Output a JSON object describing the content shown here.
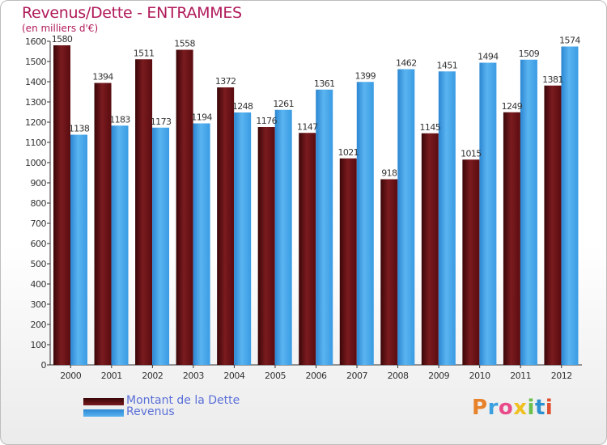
{
  "chart_data": {
    "type": "bar",
    "title": "Revenus/Dette - ENTRAMMES",
    "subtitle": "(en milliers d'€)",
    "categories": [
      "2000",
      "2001",
      "2002",
      "2003",
      "2004",
      "2005",
      "2006",
      "2007",
      "2008",
      "2009",
      "2010",
      "2011",
      "2012"
    ],
    "series": [
      {
        "name": "Montant de la Dette",
        "color": "#6e0f13",
        "values": [
          1580,
          1394,
          1511,
          1558,
          1372,
          1176,
          1147,
          1021,
          918,
          1145,
          1015,
          1249,
          1381
        ]
      },
      {
        "name": "Revenus",
        "color": "#3f9ee6",
        "values": [
          1138,
          1183,
          1173,
          1194,
          1248,
          1261,
          1361,
          1399,
          1462,
          1451,
          1494,
          1509,
          1574
        ]
      }
    ],
    "ylim": [
      0,
      1600
    ],
    "yticks": [
      0,
      100,
      200,
      300,
      400,
      500,
      600,
      700,
      800,
      900,
      1000,
      1100,
      1200,
      1300,
      1400,
      1500,
      1600
    ],
    "grid": false,
    "legend_position": "bottom-left"
  },
  "logo": {
    "text": "Proxiti",
    "colors": [
      "#e8822a",
      "#3aa0e0",
      "#e84a8a",
      "#f0c020",
      "#6ac04a",
      "#2a90d0",
      "#e05030"
    ]
  }
}
